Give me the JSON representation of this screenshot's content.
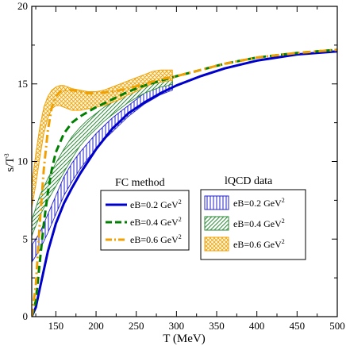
{
  "chart_data": {
    "type": "line",
    "xlabel": "T (MeV)",
    "ylabel": "s/T",
    "ylabel_sup": "3",
    "xlim": [
      120,
      500
    ],
    "ylim": [
      0,
      20
    ],
    "xticks": [
      150,
      200,
      250,
      300,
      350,
      400,
      450,
      500
    ],
    "yticks": [
      0,
      5,
      10,
      15,
      20
    ],
    "grid": false,
    "series": [
      {
        "name": "eB=0.2 GeV",
        "name_sup": "2",
        "group": "FC method",
        "color": "#0000cc",
        "dash": "solid",
        "x": [
          120,
          125,
          130,
          135,
          140,
          150,
          160,
          170,
          180,
          190,
          200,
          220,
          240,
          260,
          280,
          300,
          330,
          360,
          400,
          450,
          500
        ],
        "y": [
          0.0,
          0.6,
          1.8,
          3.0,
          4.2,
          6.0,
          7.3,
          8.3,
          9.2,
          10.0,
          10.8,
          12.1,
          13.1,
          13.8,
          14.4,
          14.9,
          15.5,
          16.0,
          16.5,
          16.9,
          17.1
        ]
      },
      {
        "name": "eB=0.4 GeV",
        "name_sup": "2",
        "group": "FC method",
        "color": "#008000",
        "dash": "dashed",
        "x": [
          120,
          125,
          130,
          135,
          140,
          145,
          150,
          160,
          170,
          180,
          190,
          200,
          220,
          240,
          260,
          280,
          300,
          330,
          360,
          400,
          450,
          500
        ],
        "y": [
          0.0,
          1.0,
          3.5,
          6.0,
          8.0,
          9.5,
          10.6,
          11.8,
          12.5,
          12.9,
          13.2,
          13.5,
          14.0,
          14.5,
          14.9,
          15.2,
          15.5,
          15.9,
          16.3,
          16.7,
          17.0,
          17.2
        ]
      },
      {
        "name": "eB=0.6 GeV",
        "name_sup": "2",
        "group": "FC method",
        "color": "#f0a000",
        "dash": "dashdot",
        "x": [
          120,
          125,
          130,
          135,
          140,
          145,
          150,
          155,
          160,
          170,
          180,
          190,
          200,
          220,
          240,
          260,
          280,
          300,
          330,
          360,
          400,
          450,
          500
        ],
        "y": [
          0.0,
          2.0,
          6.0,
          9.5,
          12.0,
          13.5,
          14.2,
          14.5,
          14.6,
          14.6,
          14.5,
          14.4,
          14.4,
          14.5,
          14.7,
          15.0,
          15.3,
          15.5,
          15.9,
          16.3,
          16.7,
          17.0,
          17.2
        ]
      }
    ],
    "bands": [
      {
        "name": "eB=0.2 GeV",
        "name_sup": "2",
        "group": "lQCD data",
        "color": "#2020cc",
        "pattern": "vertical",
        "x": [
          120,
          130,
          140,
          150,
          160,
          170,
          180,
          190,
          200,
          210,
          220,
          230,
          240,
          250,
          260,
          270,
          280,
          290,
          295
        ],
        "lower": [
          3.5,
          4.3,
          5.4,
          6.6,
          7.8,
          8.7,
          9.5,
          10.2,
          10.8,
          11.4,
          11.9,
          12.4,
          12.9,
          13.3,
          13.7,
          14.0,
          14.3,
          14.5,
          14.6
        ],
        "upper": [
          4.6,
          5.4,
          6.6,
          7.8,
          9.0,
          9.9,
          10.6,
          11.2,
          11.8,
          12.3,
          12.8,
          13.2,
          13.6,
          14.0,
          14.4,
          14.7,
          15.0,
          15.2,
          15.3
        ]
      },
      {
        "name": "eB=0.4 GeV",
        "name_sup": "2",
        "group": "lQCD data",
        "color": "#2e8b3a",
        "pattern": "diagonal",
        "x": [
          120,
          130,
          140,
          150,
          160,
          170,
          180,
          190,
          200,
          210,
          220,
          230,
          240,
          250,
          260,
          270,
          280,
          290,
          295
        ],
        "lower": [
          5.2,
          6.5,
          7.5,
          8.4,
          9.3,
          10.2,
          11.0,
          11.6,
          12.1,
          12.6,
          13.0,
          13.4,
          13.8,
          14.1,
          14.4,
          14.6,
          14.8,
          14.9,
          15.0
        ],
        "upper": [
          6.2,
          7.8,
          8.9,
          9.9,
          10.8,
          11.6,
          12.2,
          12.7,
          13.1,
          13.5,
          13.8,
          14.1,
          14.4,
          14.7,
          15.0,
          15.2,
          15.3,
          15.4,
          15.4
        ]
      },
      {
        "name": "eB=0.6 GeV",
        "name_sup": "2",
        "group": "lQCD data",
        "color": "#f0a000",
        "pattern": "crosshatch",
        "x": [
          120,
          125,
          130,
          135,
          140,
          145,
          150,
          155,
          160,
          170,
          180,
          190,
          200,
          210,
          220,
          230,
          240,
          250,
          260,
          270,
          280,
          290,
          295
        ],
        "lower": [
          7.0,
          8.5,
          10.2,
          11.8,
          12.8,
          13.4,
          13.6,
          13.6,
          13.5,
          13.3,
          13.3,
          13.4,
          13.5,
          13.6,
          13.8,
          14.0,
          14.3,
          14.5,
          14.8,
          15.0,
          15.1,
          15.2,
          15.2
        ],
        "upper": [
          8.5,
          10.5,
          12.2,
          13.5,
          14.2,
          14.6,
          14.8,
          14.9,
          14.9,
          14.7,
          14.6,
          14.5,
          14.5,
          14.6,
          14.8,
          15.0,
          15.2,
          15.4,
          15.6,
          15.8,
          15.9,
          15.9,
          15.9
        ]
      }
    ],
    "legend": [
      {
        "title": "FC method",
        "placement": "center-left",
        "items": [
          0,
          1,
          2
        ]
      },
      {
        "title": "lQCD data",
        "placement": "center-right",
        "items": [
          0,
          1,
          2
        ]
      }
    ]
  }
}
